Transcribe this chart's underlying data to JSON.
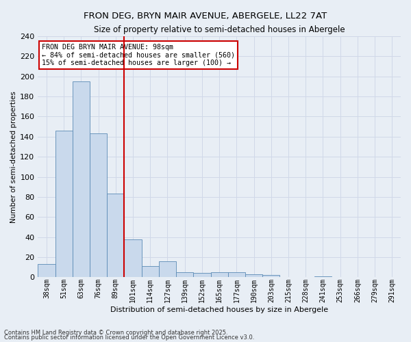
{
  "title1": "FRON DEG, BRYN MAIR AVENUE, ABERGELE, LL22 7AT",
  "title2": "Size of property relative to semi-detached houses in Abergele",
  "xlabel": "Distribution of semi-detached houses by size in Abergele",
  "ylabel": "Number of semi-detached properties",
  "categories": [
    "38sqm",
    "51sqm",
    "63sqm",
    "76sqm",
    "89sqm",
    "101sqm",
    "114sqm",
    "127sqm",
    "139sqm",
    "152sqm",
    "165sqm",
    "177sqm",
    "190sqm",
    "203sqm",
    "215sqm",
    "228sqm",
    "241sqm",
    "253sqm",
    "266sqm",
    "279sqm",
    "291sqm"
  ],
  "values": [
    13,
    146,
    195,
    143,
    83,
    38,
    11,
    16,
    5,
    4,
    5,
    5,
    3,
    2,
    0,
    0,
    1,
    0,
    0,
    0,
    0
  ],
  "bar_color": "#c9d9ec",
  "bar_edge_color": "#5a8ab5",
  "vline_x_index": 5,
  "annotation_text": "FRON DEG BRYN MAIR AVENUE: 98sqm\n← 84% of semi-detached houses are smaller (560)\n15% of semi-detached houses are larger (100) →",
  "annotation_box_color": "#ffffff",
  "annotation_box_edge_color": "#cc0000",
  "vline_color": "#cc0000",
  "ylim": [
    0,
    240
  ],
  "yticks": [
    0,
    20,
    40,
    60,
    80,
    100,
    120,
    140,
    160,
    180,
    200,
    220,
    240
  ],
  "grid_color": "#d0d8e8",
  "background_color": "#e8eef5",
  "footer1": "Contains HM Land Registry data © Crown copyright and database right 2025.",
  "footer2": "Contains public sector information licensed under the Open Government Licence v3.0."
}
